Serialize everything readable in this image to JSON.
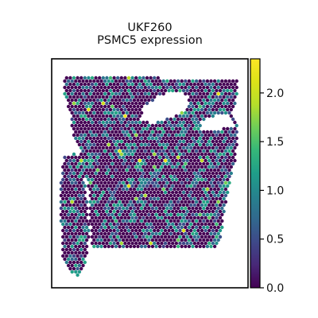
{
  "chart_data": {
    "type": "scatter",
    "title_lines": [
      "UKF260",
      "PSMC5 expression"
    ],
    "xlabel": "",
    "ylabel": "",
    "grid": false,
    "colormap": "viridis",
    "value_range": [
      0.0,
      2.35
    ],
    "colorbar_ticks": [
      {
        "value": 0.0,
        "label": "0.0"
      },
      {
        "value": 0.5,
        "label": "0.5"
      },
      {
        "value": 1.0,
        "label": "1.0"
      },
      {
        "value": 1.5,
        "label": "1.5"
      },
      {
        "value": 2.0,
        "label": "2.0"
      }
    ],
    "expression_mix": {
      "zero_fraction": 0.62,
      "typical_nonzero": [
        0.4,
        1.3
      ],
      "max_observed": 2.3
    }
  }
}
